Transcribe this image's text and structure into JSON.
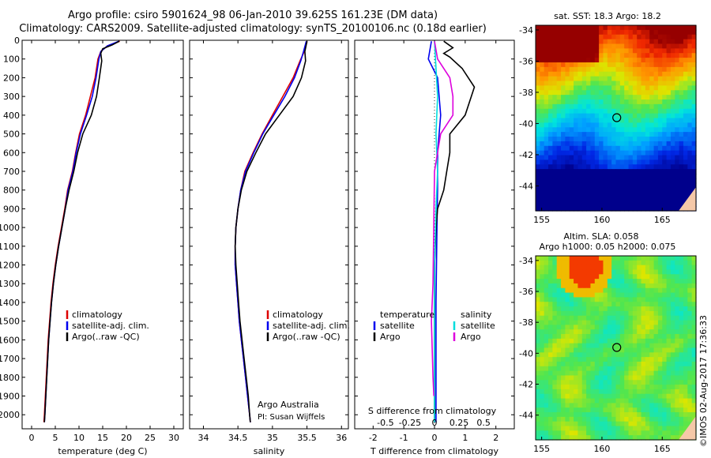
{
  "header": {
    "line1": "Argo profile: csiro 5901624_98 06-Jan-2010 39.625S 161.23E (DM data)",
    "line2": "Climatology: CARS2009. Satellite-adjusted climatology: synTS_20100106.nc (0.18d earlier)"
  },
  "colors": {
    "climatology": "#dd0000",
    "satellite": "#0000ee",
    "argo": "#000000",
    "sat_salinity": "#00dddd",
    "argo_salinity": "#dd00dd"
  },
  "chart_data": [
    {
      "type": "line",
      "name": "temperature-profile",
      "xlabel": "temperature (deg C)",
      "ylabel": "",
      "xlim": [
        -2,
        32
      ],
      "ylim": [
        0,
        2075
      ],
      "xticks": [
        "0",
        "5",
        "10",
        "15",
        "20",
        "25",
        "30"
      ],
      "xtick_values": [
        0,
        5,
        10,
        15,
        20,
        25,
        30
      ],
      "yticks": [
        "0",
        "100",
        "200",
        "300",
        "400",
        "500",
        "600",
        "700",
        "800",
        "900",
        "1000",
        "1100",
        "1200",
        "1300",
        "1400",
        "1500",
        "1600",
        "1700",
        "1800",
        "1900",
        "2000"
      ],
      "legend": [
        "climatology",
        "satellite-adj. clim.",
        "Argo(..raw -QC)"
      ],
      "series": [
        {
          "name": "climatology",
          "key": "climatology",
          "points": [
            [
              18.6,
              5
            ],
            [
              16,
              30
            ],
            [
              14.6,
              60
            ],
            [
              14,
              100
            ],
            [
              13.4,
              200
            ],
            [
              12.4,
              300
            ],
            [
              11.4,
              400
            ],
            [
              10.1,
              500
            ],
            [
              9.3,
              600
            ],
            [
              8.6,
              700
            ],
            [
              7.6,
              800
            ],
            [
              7,
              900
            ],
            [
              6.3,
              1000
            ],
            [
              5.6,
              1100
            ],
            [
              5,
              1200
            ],
            [
              4.5,
              1300
            ],
            [
              4.1,
              1400
            ],
            [
              3.8,
              1500
            ],
            [
              3.5,
              1600
            ],
            [
              3.3,
              1700
            ],
            [
              3.1,
              1800
            ],
            [
              2.9,
              1900
            ],
            [
              2.7,
              2000
            ],
            [
              2.6,
              2040
            ]
          ]
        },
        {
          "name": "satellite-adj. clim.",
          "key": "satellite",
          "points": [
            [
              18.4,
              5
            ],
            [
              16,
              30
            ],
            [
              14.6,
              60
            ],
            [
              14.2,
              100
            ],
            [
              13.6,
              200
            ],
            [
              12.8,
              300
            ],
            [
              11.6,
              400
            ],
            [
              10.3,
              500
            ],
            [
              9.4,
              600
            ],
            [
              8.7,
              700
            ],
            [
              7.7,
              800
            ],
            [
              7.1,
              900
            ],
            [
              6.4,
              1000
            ],
            [
              5.7,
              1100
            ],
            [
              5.1,
              1200
            ],
            [
              4.6,
              1300
            ],
            [
              4.2,
              1400
            ],
            [
              3.9,
              1500
            ],
            [
              3.6,
              1600
            ],
            [
              3.4,
              1700
            ],
            [
              3.2,
              1800
            ],
            [
              3,
              1900
            ],
            [
              2.8,
              2000
            ],
            [
              2.7,
              2040
            ]
          ]
        },
        {
          "name": "Argo(..raw -QC)",
          "key": "argo",
          "points": [
            [
              18.5,
              5
            ],
            [
              17,
              25
            ],
            [
              15,
              45
            ],
            [
              14.6,
              70
            ],
            [
              14.8,
              110
            ],
            [
              14.3,
              200
            ],
            [
              13.7,
              300
            ],
            [
              12.6,
              400
            ],
            [
              10.8,
              500
            ],
            [
              9.7,
              600
            ],
            [
              8.9,
              700
            ],
            [
              7.9,
              800
            ],
            [
              7.1,
              900
            ],
            [
              6.4,
              1000
            ],
            [
              5.7,
              1100
            ],
            [
              5.1,
              1200
            ],
            [
              4.6,
              1300
            ],
            [
              4.2,
              1400
            ],
            [
              3.9,
              1500
            ],
            [
              3.6,
              1600
            ],
            [
              3.4,
              1700
            ],
            [
              3.2,
              1800
            ],
            [
              3,
              1900
            ],
            [
              2.8,
              2000
            ],
            [
              2.7,
              2040
            ]
          ]
        }
      ]
    },
    {
      "type": "line",
      "name": "salinity-profile",
      "xlabel": "salinity",
      "xlim": [
        33.8,
        36.1
      ],
      "ylim": [
        0,
        2075
      ],
      "xticks": [
        "34",
        "34.5",
        "35",
        "35.5",
        "36"
      ],
      "xtick_values": [
        34,
        34.5,
        35,
        35.5,
        36
      ],
      "legend": [
        "climatology",
        "satellite-adj. clim.",
        "Argo(..raw -QC)"
      ],
      "annotation": [
        "Argo Australia",
        "PI: Susan Wijffels"
      ],
      "series": [
        {
          "name": "climatology",
          "key": "climatology",
          "points": [
            [
              35.5,
              5
            ],
            [
              35.46,
              60
            ],
            [
              35.4,
              110
            ],
            [
              35.3,
              200
            ],
            [
              35.15,
              300
            ],
            [
              35,
              400
            ],
            [
              34.85,
              500
            ],
            [
              34.72,
              600
            ],
            [
              34.6,
              700
            ],
            [
              34.54,
              800
            ],
            [
              34.5,
              900
            ],
            [
              34.47,
              1000
            ],
            [
              34.46,
              1100
            ],
            [
              34.46,
              1200
            ],
            [
              34.48,
              1300
            ],
            [
              34.5,
              1400
            ],
            [
              34.52,
              1500
            ],
            [
              34.55,
              1600
            ],
            [
              34.58,
              1700
            ],
            [
              34.61,
              1800
            ],
            [
              34.64,
              1900
            ],
            [
              34.67,
              2000
            ],
            [
              34.68,
              2040
            ]
          ]
        },
        {
          "name": "satellite-adj. clim.",
          "key": "satellite",
          "points": [
            [
              35.49,
              5
            ],
            [
              35.45,
              60
            ],
            [
              35.41,
              110
            ],
            [
              35.32,
              200
            ],
            [
              35.18,
              300
            ],
            [
              35.02,
              400
            ],
            [
              34.86,
              500
            ],
            [
              34.73,
              600
            ],
            [
              34.61,
              700
            ],
            [
              34.54,
              800
            ],
            [
              34.5,
              900
            ],
            [
              34.47,
              1000
            ],
            [
              34.46,
              1100
            ],
            [
              34.46,
              1200
            ],
            [
              34.48,
              1300
            ],
            [
              34.5,
              1400
            ],
            [
              34.52,
              1500
            ],
            [
              34.55,
              1600
            ],
            [
              34.58,
              1700
            ],
            [
              34.61,
              1800
            ],
            [
              34.64,
              1900
            ],
            [
              34.67,
              2000
            ],
            [
              34.68,
              2040
            ]
          ]
        },
        {
          "name": "Argo(..raw -QC)",
          "key": "argo",
          "points": [
            [
              35.5,
              5
            ],
            [
              35.47,
              60
            ],
            [
              35.48,
              110
            ],
            [
              35.42,
              200
            ],
            [
              35.3,
              300
            ],
            [
              35.1,
              400
            ],
            [
              34.9,
              500
            ],
            [
              34.76,
              600
            ],
            [
              34.63,
              700
            ],
            [
              34.55,
              800
            ],
            [
              34.5,
              900
            ],
            [
              34.47,
              1000
            ],
            [
              34.46,
              1100
            ],
            [
              34.47,
              1200
            ],
            [
              34.49,
              1300
            ],
            [
              34.51,
              1400
            ],
            [
              34.53,
              1500
            ],
            [
              34.56,
              1600
            ],
            [
              34.59,
              1700
            ],
            [
              34.62,
              1800
            ],
            [
              34.65,
              1900
            ],
            [
              34.67,
              2000
            ],
            [
              34.68,
              2040
            ]
          ]
        }
      ]
    },
    {
      "type": "line",
      "name": "difference-profile",
      "xlabel": "T difference from climatology",
      "xlabel_top": "S difference from climatology",
      "xlim": [
        -2.6,
        2.6
      ],
      "ylim": [
        0,
        2075
      ],
      "xticks": [
        "-2",
        "-1",
        "0",
        "1",
        "2"
      ],
      "xtick_values": [
        -2,
        -1,
        0,
        1,
        2
      ],
      "sticks": [
        "-0.5",
        "-0.25",
        "0",
        "0.25",
        "0.5"
      ],
      "stick_values": [
        -1.6,
        -0.8,
        0,
        0.8,
        1.6
      ],
      "legend_temperature": {
        "heading": "temperature",
        "items": [
          "satellite",
          "Argo"
        ]
      },
      "legend_salinity": {
        "heading": "salinity",
        "items": [
          "satellite",
          "Argo"
        ]
      },
      "series": [
        {
          "name": "temperature satellite",
          "key": "satellite",
          "points": [
            [
              -0.1,
              5
            ],
            [
              -0.2,
              100
            ],
            [
              0.1,
              200
            ],
            [
              0.2,
              400
            ],
            [
              0.1,
              600
            ],
            [
              0.1,
              800
            ],
            [
              0.08,
              1000
            ],
            [
              0.05,
              1400
            ],
            [
              0.05,
              2040
            ]
          ]
        },
        {
          "name": "temperature Argo",
          "key": "argo",
          "points": [
            [
              0.3,
              5
            ],
            [
              0.6,
              40
            ],
            [
              0.3,
              70
            ],
            [
              0.5,
              90
            ],
            [
              0.9,
              150
            ],
            [
              1.3,
              250
            ],
            [
              1.2,
              300
            ],
            [
              1,
              400
            ],
            [
              0.5,
              500
            ],
            [
              0.5,
              600
            ],
            [
              0.4,
              700
            ],
            [
              0.3,
              800
            ],
            [
              0.1,
              900
            ],
            [
              0.05,
              1000
            ],
            [
              0,
              1200
            ],
            [
              0,
              2040
            ]
          ]
        },
        {
          "name": "salinity satellite",
          "key": "sat_salinity",
          "points": [
            [
              0,
              5
            ],
            [
              0.05,
              150
            ],
            [
              0.1,
              300
            ],
            [
              0.05,
              500
            ],
            [
              0.1,
              700
            ],
            [
              0.05,
              900
            ],
            [
              0,
              1200
            ],
            [
              0,
              2040
            ]
          ]
        },
        {
          "name": "salinity Argo",
          "key": "argo_salinity",
          "points": [
            [
              0,
              5
            ],
            [
              0.1,
              100
            ],
            [
              0.5,
              200
            ],
            [
              0.6,
              300
            ],
            [
              0.6,
              400
            ],
            [
              0.2,
              500
            ],
            [
              0.1,
              600
            ],
            [
              0,
              700
            ],
            [
              -0.05,
              1300
            ],
            [
              -0.1,
              1500
            ],
            [
              -0.05,
              1800
            ],
            [
              -0.02,
              1900
            ]
          ]
        }
      ]
    },
    {
      "type": "heatmap",
      "name": "sst-map",
      "title": "sat. SST: 18.3  Argo: 18.2",
      "xticks": [
        "155",
        "160",
        "165"
      ],
      "yticks": [
        "-34",
        "-36",
        "-38",
        "-40",
        "-42",
        "-44"
      ],
      "xlim": [
        154.5,
        167.8
      ],
      "ylim": [
        -45.6,
        -33.7
      ],
      "marker": {
        "lon": 161.23,
        "lat": -39.625
      }
    },
    {
      "type": "heatmap",
      "name": "sla-map",
      "title": "Altim. SLA: 0.058",
      "subtitle": "Argo h1000: 0.05  h2000: 0.075",
      "xticks": [
        "155",
        "160",
        "165"
      ],
      "yticks": [
        "-34",
        "-36",
        "-38",
        "-40",
        "-42",
        "-44"
      ],
      "xlim": [
        154.5,
        167.8
      ],
      "ylim": [
        -45.6,
        -33.7
      ],
      "marker": {
        "lon": 161.23,
        "lat": -39.625
      }
    }
  ],
  "footer": {
    "stamp": "©IMOS 02-Aug-2017 17:36:33"
  }
}
